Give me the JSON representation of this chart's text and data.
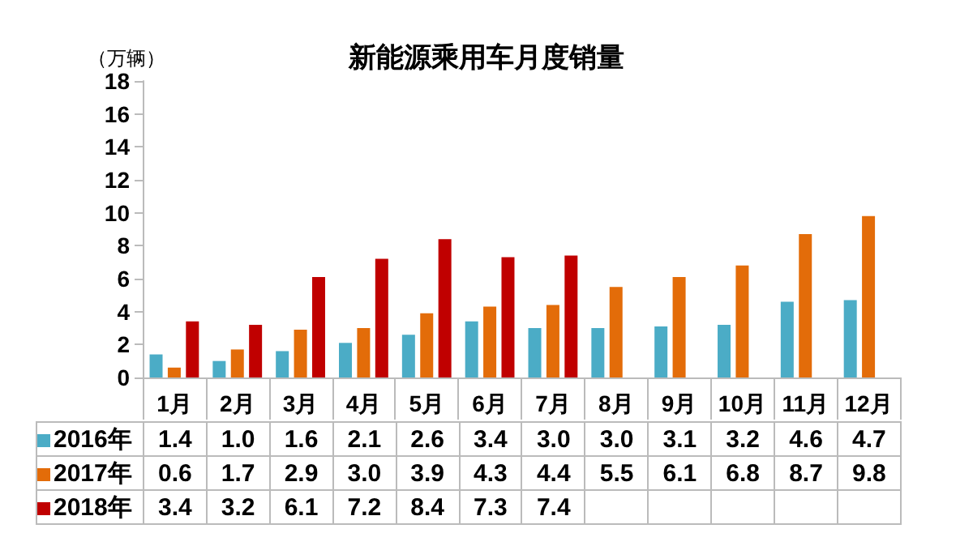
{
  "chart_data": {
    "type": "bar",
    "title": "新能源乘用车月度销量",
    "ylabel": "（万辆）",
    "categories": [
      "1月",
      "2月",
      "3月",
      "4月",
      "5月",
      "6月",
      "7月",
      "8月",
      "9月",
      "10月",
      "11月",
      "12月"
    ],
    "series": [
      {
        "name": "2016年",
        "color": "#4bacc6",
        "values": [
          1.4,
          1.0,
          1.6,
          2.1,
          2.6,
          3.4,
          3.0,
          3.0,
          3.1,
          3.2,
          4.6,
          4.7
        ],
        "value_labels": [
          "1.4",
          "1.0",
          "1.6",
          "2.1",
          "2.6",
          "3.4",
          "3.0",
          "3.0",
          "3.1",
          "3.2",
          "4.6",
          "4.7"
        ]
      },
      {
        "name": "2017年",
        "color": "#e36c09",
        "values": [
          0.6,
          1.7,
          2.9,
          3.0,
          3.9,
          4.3,
          4.4,
          5.5,
          6.1,
          6.8,
          8.7,
          9.8
        ],
        "value_labels": [
          "0.6",
          "1.7",
          "2.9",
          "3.0",
          "3.9",
          "4.3",
          "4.4",
          "5.5",
          "6.1",
          "6.8",
          "8.7",
          "9.8"
        ]
      },
      {
        "name": "2018年",
        "color": "#c00000",
        "values": [
          3.4,
          3.2,
          6.1,
          7.2,
          8.4,
          7.3,
          7.4,
          null,
          null,
          null,
          null,
          null
        ],
        "value_labels": [
          "3.4",
          "3.2",
          "6.1",
          "7.2",
          "8.4",
          "7.3",
          "7.4",
          null,
          null,
          null,
          null,
          null
        ]
      }
    ],
    "ylim": [
      0,
      18
    ],
    "yticks": [
      0,
      2,
      4,
      6,
      8,
      10,
      12,
      14,
      16,
      18
    ],
    "grid": false,
    "legend": "bottom"
  }
}
